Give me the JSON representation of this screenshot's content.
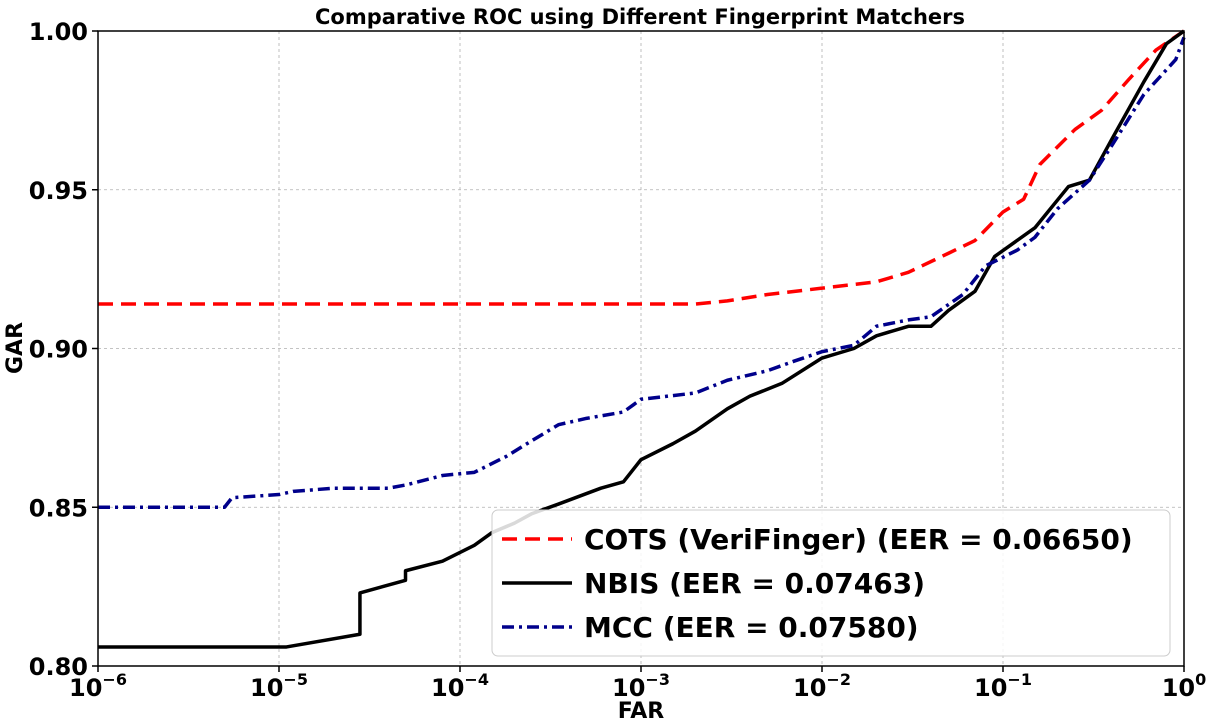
{
  "chart_data": {
    "type": "line",
    "title": "Comparative ROC using Different Fingerprint Matchers",
    "xlabel": "FAR",
    "ylabel": "GAR",
    "xscale": "log",
    "xlim": [
      1e-06,
      1
    ],
    "ylim": [
      0.8,
      1.0
    ],
    "grid": true,
    "legend_position": "lower-right",
    "x_ticks": [
      {
        "base": "10",
        "exp": "−6",
        "value": 1e-06
      },
      {
        "base": "10",
        "exp": "−5",
        "value": 1e-05
      },
      {
        "base": "10",
        "exp": "−4",
        "value": 0.0001
      },
      {
        "base": "10",
        "exp": "−3",
        "value": 0.001
      },
      {
        "base": "10",
        "exp": "−2",
        "value": 0.01
      },
      {
        "base": "10",
        "exp": "−1",
        "value": 0.1
      },
      {
        "base": "10",
        "exp": "0",
        "value": 1
      }
    ],
    "y_ticks": [
      {
        "label": "0.80",
        "value": 0.8
      },
      {
        "label": "0.85",
        "value": 0.85
      },
      {
        "label": "0.90",
        "value": 0.9
      },
      {
        "label": "0.95",
        "value": 0.95
      },
      {
        "label": "1.00",
        "value": 1.0
      }
    ],
    "series": [
      {
        "name": "COTS (VeriFinger) (EER = 0.06650)",
        "color": "#ff0000",
        "dash": "dashed",
        "points": [
          [
            1e-06,
            0.914
          ],
          [
            0.0001,
            0.914
          ],
          [
            0.002,
            0.914
          ],
          [
            0.003,
            0.915
          ],
          [
            0.005,
            0.917
          ],
          [
            0.01,
            0.919
          ],
          [
            0.02,
            0.921
          ],
          [
            0.03,
            0.924
          ],
          [
            0.05,
            0.93
          ],
          [
            0.07,
            0.934
          ],
          [
            0.1,
            0.943
          ],
          [
            0.13,
            0.947
          ],
          [
            0.16,
            0.958
          ],
          [
            0.25,
            0.969
          ],
          [
            0.35,
            0.975
          ],
          [
            0.5,
            0.985
          ],
          [
            0.7,
            0.994
          ],
          [
            1,
            1.0
          ]
        ]
      },
      {
        "name": "NBIS (EER = 0.07463)",
        "color": "#000000",
        "dash": "solid",
        "points": [
          [
            1e-06,
            0.806
          ],
          [
            1.1e-05,
            0.806
          ],
          [
            2.8e-05,
            0.81
          ],
          [
            2.8e-05,
            0.823
          ],
          [
            5e-05,
            0.827
          ],
          [
            5e-05,
            0.83
          ],
          [
            8e-05,
            0.833
          ],
          [
            0.00012,
            0.838
          ],
          [
            0.00015,
            0.842
          ],
          [
            0.0002,
            0.845
          ],
          [
            0.00025,
            0.848
          ],
          [
            0.00035,
            0.851
          ],
          [
            0.0006,
            0.856
          ],
          [
            0.0008,
            0.858
          ],
          [
            0.001,
            0.865
          ],
          [
            0.0015,
            0.87
          ],
          [
            0.002,
            0.874
          ],
          [
            0.003,
            0.881
          ],
          [
            0.004,
            0.885
          ],
          [
            0.006,
            0.889
          ],
          [
            0.01,
            0.897
          ],
          [
            0.015,
            0.9
          ],
          [
            0.02,
            0.904
          ],
          [
            0.03,
            0.907
          ],
          [
            0.04,
            0.907
          ],
          [
            0.05,
            0.912
          ],
          [
            0.07,
            0.918
          ],
          [
            0.09,
            0.929
          ],
          [
            0.15,
            0.938
          ],
          [
            0.23,
            0.951
          ],
          [
            0.3,
            0.953
          ],
          [
            0.4,
            0.966
          ],
          [
            0.6,
            0.984
          ],
          [
            0.8,
            0.996
          ],
          [
            1,
            1.0
          ]
        ]
      },
      {
        "name": "MCC (EER = 0.07580)",
        "color": "#00008b",
        "dash": "dashdot",
        "points": [
          [
            1e-06,
            0.85
          ],
          [
            5e-06,
            0.85
          ],
          [
            5.5e-06,
            0.853
          ],
          [
            1e-05,
            0.854
          ],
          [
            1.2e-05,
            0.855
          ],
          [
            2e-05,
            0.856
          ],
          [
            4e-05,
            0.856
          ],
          [
            5e-05,
            0.857
          ],
          [
            8e-05,
            0.86
          ],
          [
            0.00012,
            0.861
          ],
          [
            0.00018,
            0.866
          ],
          [
            0.00025,
            0.871
          ],
          [
            0.00035,
            0.876
          ],
          [
            0.0005,
            0.878
          ],
          [
            0.0008,
            0.88
          ],
          [
            0.001,
            0.884
          ],
          [
            0.002,
            0.886
          ],
          [
            0.003,
            0.89
          ],
          [
            0.005,
            0.893
          ],
          [
            0.007,
            0.896
          ],
          [
            0.01,
            0.899
          ],
          [
            0.015,
            0.901
          ],
          [
            0.02,
            0.907
          ],
          [
            0.03,
            0.909
          ],
          [
            0.04,
            0.91
          ],
          [
            0.06,
            0.917
          ],
          [
            0.08,
            0.926
          ],
          [
            0.12,
            0.931
          ],
          [
            0.15,
            0.935
          ],
          [
            0.2,
            0.944
          ],
          [
            0.3,
            0.953
          ],
          [
            0.4,
            0.964
          ],
          [
            0.6,
            0.98
          ],
          [
            0.9,
            0.991
          ],
          [
            1,
            0.998
          ]
        ]
      }
    ]
  }
}
